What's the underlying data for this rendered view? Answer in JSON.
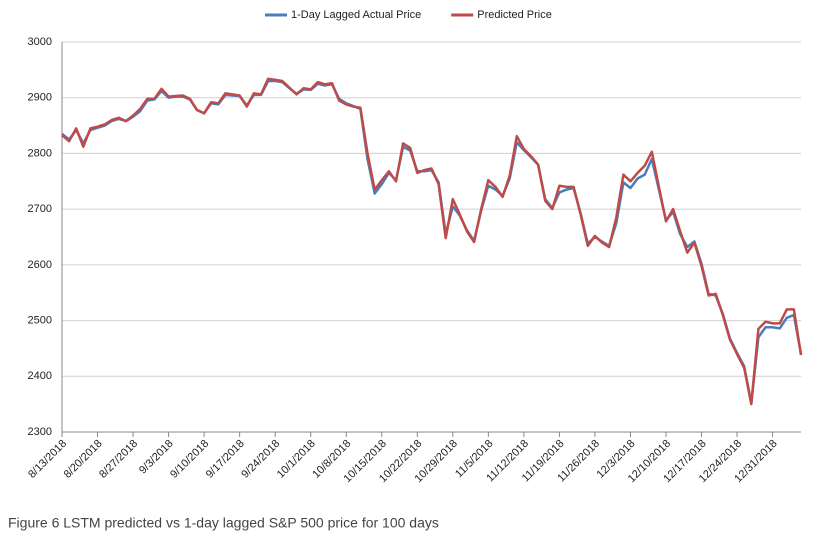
{
  "chart_data": {
    "type": "line",
    "caption": "Figure 6 LSTM predicted vs 1-day lagged S&P 500 price for 100 days",
    "categories": [
      "8/13/2018",
      null,
      null,
      null,
      null,
      "8/20/2018",
      null,
      null,
      null,
      null,
      "8/27/2018",
      null,
      null,
      null,
      null,
      "9/3/2018",
      null,
      null,
      null,
      null,
      "9/10/2018",
      null,
      null,
      null,
      null,
      "9/17/2018",
      null,
      null,
      null,
      null,
      "9/24/2018",
      null,
      null,
      null,
      null,
      "10/1/2018",
      null,
      null,
      null,
      null,
      "10/8/2018",
      null,
      null,
      null,
      null,
      "10/15/2018",
      null,
      null,
      null,
      null,
      "10/22/2018",
      null,
      null,
      null,
      null,
      "10/29/2018",
      null,
      null,
      null,
      null,
      "11/5/2018",
      null,
      null,
      null,
      null,
      "11/12/2018",
      null,
      null,
      null,
      null,
      "11/19/2018",
      null,
      null,
      null,
      null,
      "11/26/2018",
      null,
      null,
      null,
      null,
      "12/3/2018",
      null,
      null,
      null,
      null,
      "12/10/2018",
      null,
      null,
      null,
      null,
      "12/17/2018",
      null,
      null,
      null,
      null,
      "12/24/2018",
      null,
      null,
      null,
      null,
      "12/31/2018",
      null,
      null,
      null,
      null
    ],
    "series": [
      {
        "name": "1-Day Lagged Actual Price",
        "color": "#4a7ebb",
        "values": [
          2835,
          2825,
          2842,
          2818,
          2842,
          2846,
          2850,
          2858,
          2862,
          2858,
          2866,
          2876,
          2895,
          2897,
          2912,
          2900,
          2902,
          2902,
          2897,
          2878,
          2872,
          2890,
          2888,
          2905,
          2904,
          2903,
          2886,
          2905,
          2905,
          2930,
          2930,
          2928,
          2917,
          2907,
          2915,
          2914,
          2925,
          2922,
          2924,
          2898,
          2890,
          2885,
          2880,
          2790,
          2728,
          2745,
          2765,
          2752,
          2812,
          2805,
          2768,
          2768,
          2770,
          2748,
          2655,
          2705,
          2688,
          2662,
          2643,
          2698,
          2742,
          2735,
          2724,
          2755,
          2820,
          2806,
          2793,
          2780,
          2718,
          2702,
          2730,
          2735,
          2738,
          2692,
          2638,
          2650,
          2642,
          2634,
          2675,
          2748,
          2738,
          2755,
          2762,
          2790,
          2735,
          2680,
          2695,
          2655,
          2632,
          2642,
          2602,
          2548,
          2545,
          2512,
          2468,
          2442,
          2418,
          2352,
          2470,
          2488,
          2488,
          2486,
          2505,
          2510,
          2440
        ]
      },
      {
        "name": "Predicted Price",
        "color": "#be4b48",
        "values": [
          2833,
          2822,
          2845,
          2812,
          2845,
          2848,
          2852,
          2860,
          2864,
          2858,
          2868,
          2880,
          2898,
          2898,
          2916,
          2902,
          2903,
          2904,
          2898,
          2878,
          2872,
          2892,
          2890,
          2908,
          2906,
          2904,
          2884,
          2908,
          2906,
          2934,
          2932,
          2930,
          2918,
          2906,
          2917,
          2915,
          2928,
          2924,
          2926,
          2895,
          2888,
          2884,
          2882,
          2800,
          2735,
          2752,
          2768,
          2750,
          2818,
          2810,
          2765,
          2770,
          2773,
          2745,
          2648,
          2718,
          2690,
          2660,
          2641,
          2700,
          2752,
          2740,
          2722,
          2760,
          2831,
          2808,
          2795,
          2780,
          2715,
          2700,
          2742,
          2740,
          2740,
          2690,
          2634,
          2652,
          2640,
          2632,
          2685,
          2762,
          2750,
          2765,
          2778,
          2803,
          2740,
          2678,
          2700,
          2660,
          2622,
          2640,
          2598,
          2545,
          2548,
          2510,
          2466,
          2440,
          2415,
          2350,
          2485,
          2498,
          2495,
          2495,
          2520,
          2520,
          2438
        ]
      }
    ],
    "ylim": [
      2300,
      3000
    ],
    "yticks": [
      2300,
      2400,
      2500,
      2600,
      2700,
      2800,
      2900,
      3000
    ],
    "grid": true,
    "legend": "top"
  }
}
